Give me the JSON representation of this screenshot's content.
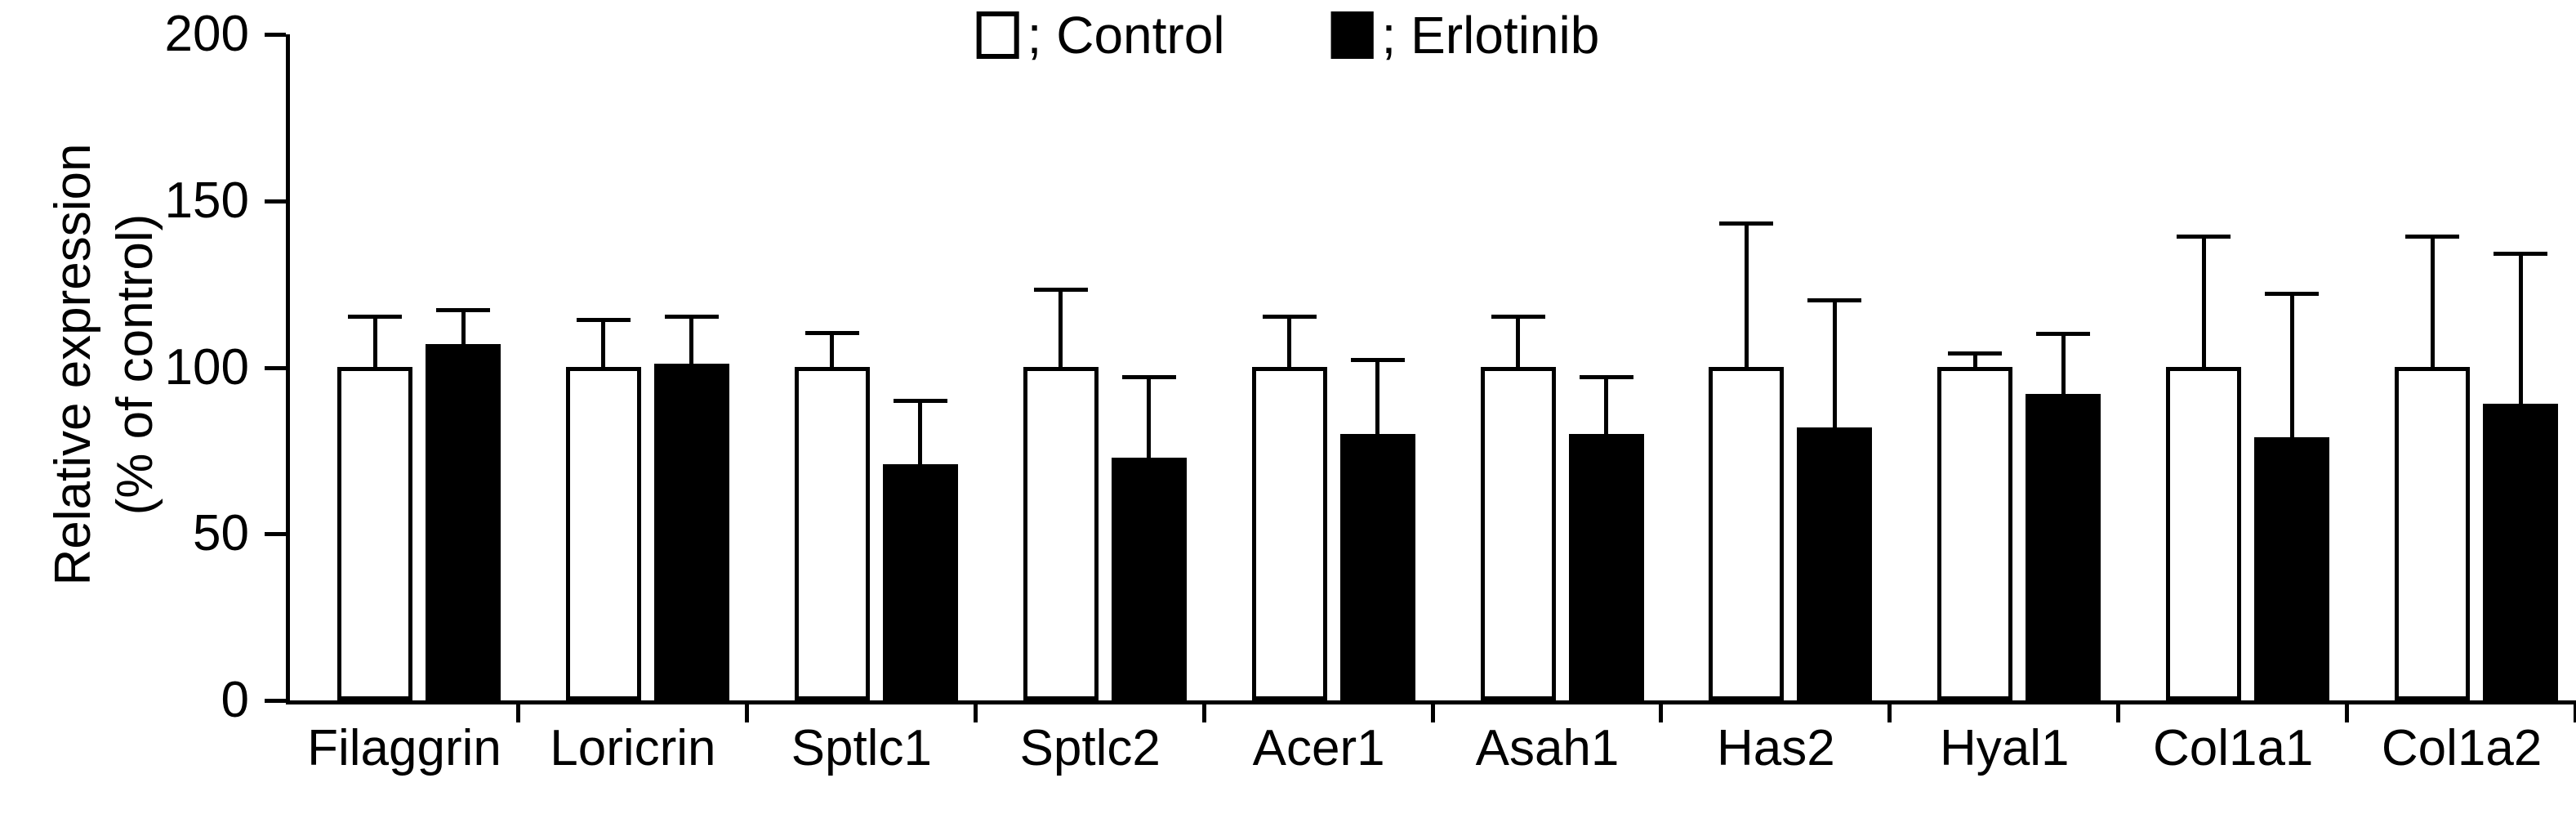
{
  "figure": {
    "y_axis_title_line1": "Relative expression",
    "y_axis_title_line2": "(% of control)",
    "y_tick_labels": [
      "0",
      "50",
      "100",
      "150",
      "200"
    ]
  },
  "legend": {
    "control_label": "; Control",
    "erlotinib_label": "; Erlotinib"
  },
  "colors": {
    "control_fill": "#ffffff",
    "erlotinib_fill": "#000000",
    "axis": "#000000"
  },
  "chart_data": {
    "type": "bar",
    "title": "",
    "xlabel": "",
    "ylabel": "Relative expression (% of control)",
    "ylim": [
      0,
      200
    ],
    "yticks": [
      0,
      50,
      100,
      150,
      200
    ],
    "grid": false,
    "legend_position": "top-center",
    "error_bars": "upper only, SD",
    "categories": [
      "Filaggrin",
      "Loricrin",
      "Sptlc1",
      "Sptlc2",
      "Acer1",
      "Asah1",
      "Has2",
      "Hyal1",
      "Col1a1",
      "Col1a2"
    ],
    "series": [
      {
        "name": "Control",
        "legend_label": "; Control",
        "fill": "#ffffff",
        "values": [
          100,
          100,
          100,
          100,
          100,
          100,
          100,
          100,
          100,
          100
        ],
        "errors_plus": [
          15,
          14,
          10,
          23,
          15,
          15,
          43,
          4,
          39,
          39
        ]
      },
      {
        "name": "Erlotinib",
        "legend_label": "; Erlotinib",
        "fill": "#000000",
        "values": [
          107,
          101,
          71,
          73,
          80,
          80,
          82,
          92,
          79,
          89
        ],
        "errors_plus": [
          10,
          14,
          19,
          24,
          22,
          17,
          38,
          18,
          43,
          45
        ]
      }
    ]
  }
}
